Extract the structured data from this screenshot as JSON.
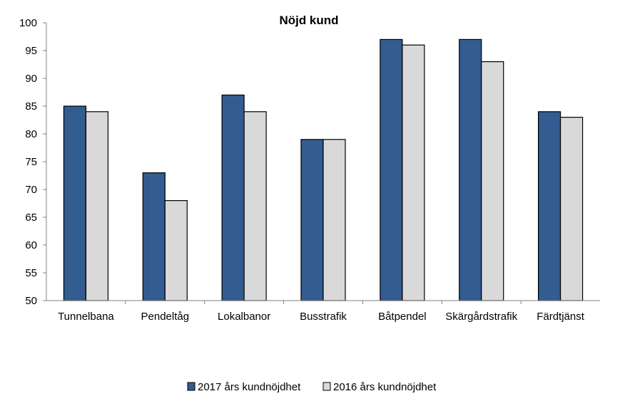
{
  "chart_data": {
    "type": "bar",
    "title": "Nöjd kund",
    "xlabel": "",
    "ylabel": "",
    "ylim": [
      50,
      100
    ],
    "yticks": [
      50,
      55,
      60,
      65,
      70,
      75,
      80,
      85,
      90,
      95,
      100
    ],
    "ytick_labels": [
      "50",
      "55",
      "60",
      "65",
      "70",
      "75",
      "80",
      "85",
      "90",
      "95",
      "100"
    ],
    "grid": false,
    "legend_position": "bottom",
    "categories": [
      "Tunnelbana",
      "Pendeltåg",
      "Lokalbanor",
      "Busstrafik",
      "Båtpendel",
      "Skärgårdstrafik",
      "Färdtjänst"
    ],
    "series": [
      {
        "name": "2017 års kundnöjdhet",
        "color": "#335C91",
        "values": [
          85,
          73,
          87,
          79,
          97,
          97,
          84
        ]
      },
      {
        "name": "2016 års kundnöjdhet",
        "color": "#D9D9D9",
        "values": [
          84,
          68,
          84,
          79,
          96,
          93,
          83
        ]
      }
    ]
  }
}
